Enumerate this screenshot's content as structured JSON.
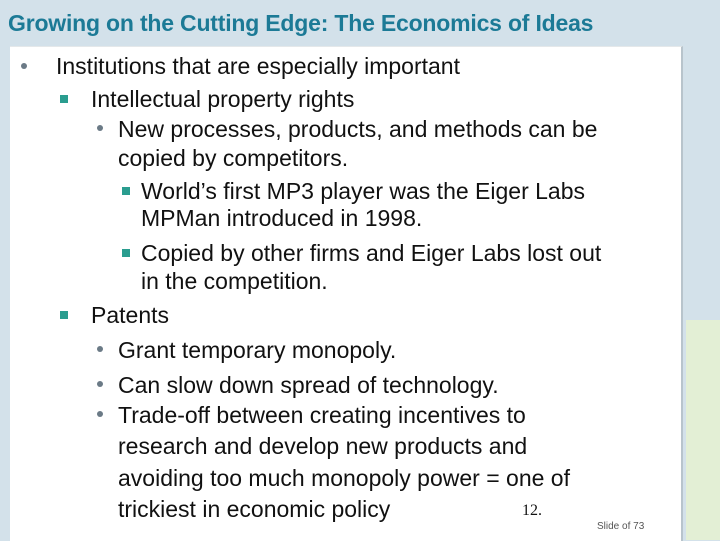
{
  "title": "Growing on the Cutting Edge: The Economics of Ideas",
  "lines": [
    "Institutions that are especially important",
    "Intellectual property rights",
    "New processes, products, and methods can be",
    "copied by competitors.",
    "World’s first MP3 player was the Eiger Labs",
    "MPMan introduced in 1998.",
    "Copied by other firms and Eiger Labs lost out",
    "in the competition.",
    "Patents",
    "Grant temporary monopoly.",
    "Can slow down spread of technology.",
    "Trade-off between creating incentives to",
    "research and develop new products and",
    "avoiding too much monopoly power = one of",
    "trickiest in economic policy"
  ],
  "page_number": "12.",
  "slide_label": "Slide  of 73",
  "colors": {
    "title": "#1c7a96",
    "background": "#d3e1ea",
    "square_bullet": "#2a9d8f"
  }
}
